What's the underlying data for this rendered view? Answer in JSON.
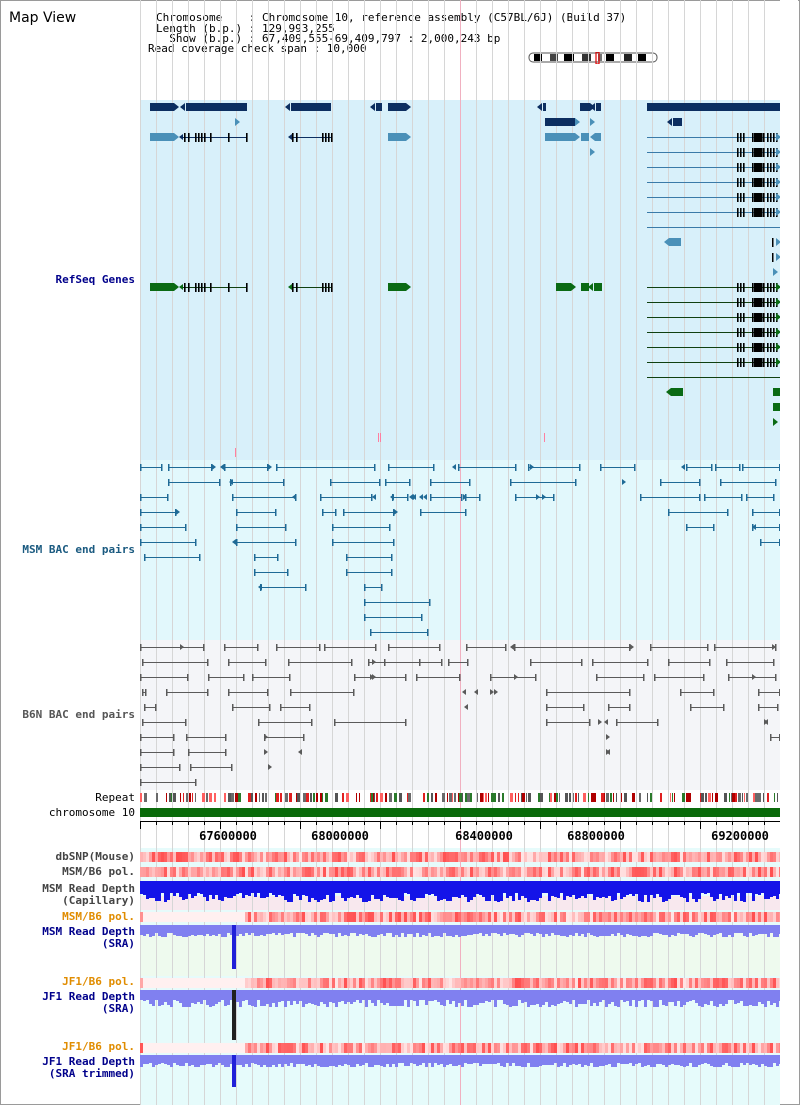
{
  "view": {
    "title": "Map View",
    "chromosome_line": "Chromosome    : Chromosome 10, reference assembly (C57BL/6J) (Build 37)",
    "length_line": "Length (b.p.) : 129,993,255",
    "show_line": "  Show (b.p.) : 67,409,555-69,409,797 : 2,000,243 bp",
    "coverage_line": "Read coverage check span : 10,000"
  },
  "tracks": {
    "refseq": "RefSeq Genes",
    "msm_bac": "MSM BAC end pairs",
    "b6n_bac": "B6N BAC end pairs",
    "repeat": "Repeat",
    "chromosome": "chromosome 10",
    "dbsnp": "dbSNP(Mouse)",
    "msm_b6_pol": "MSM/B6 pol.",
    "msm_read_cap": "MSM Read Depth\n(Capillary)",
    "msm_b6_pol2": "MSM/B6 pol.",
    "msm_read_sra": "MSM Read Depth\n(SRA)",
    "jf1_b6_pol": "JF1/B6 pol.",
    "jf1_read_sra": "JF1 Read Depth\n(SRA)",
    "jf1_b6_pol2": "JF1/B6 pol.",
    "jf1_read_trim": "JF1 Read Depth\n(SRA trimmed)"
  },
  "axis": {
    "ticks": [
      "67600000",
      "68000000",
      "68400000",
      "68800000",
      "69200000"
    ]
  },
  "colors": {
    "refseq_bg": "#d8f0fa",
    "msm_bg": "#e2f8fc",
    "b6n_bg": "#f4f5f8",
    "gene_dark": "#0c2e60",
    "gene_mid": "#4a90b8",
    "gene_green": "#0a6a14",
    "chrom_bar": "#0a6a0a",
    "depth_blue": "#1414e8",
    "depth_light": "#8080f0",
    "label_blue": "#00008b",
    "label_orange": "#e08c00"
  }
}
